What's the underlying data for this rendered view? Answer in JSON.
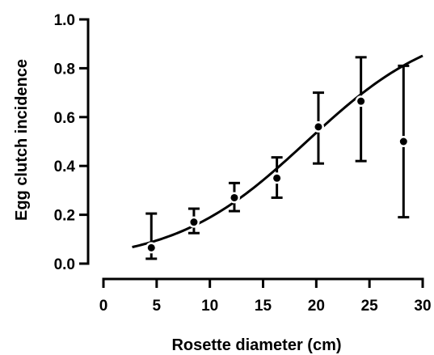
{
  "chart_data": {
    "type": "scatter",
    "title": "",
    "xlabel": "Rosette diameter (cm)",
    "ylabel": "Egg clutch incidence",
    "xlim": [
      0,
      30
    ],
    "ylim": [
      0,
      1
    ],
    "xticks": [
      0,
      5,
      10,
      15,
      20,
      25,
      30
    ],
    "yticks": [
      0.0,
      0.2,
      0.4,
      0.6,
      0.8,
      1.0
    ],
    "xtick_labels": [
      "0",
      "5",
      "10",
      "15",
      "20",
      "25",
      "30"
    ],
    "ytick_labels": [
      "0.0",
      "0.2",
      "0.4",
      "0.6",
      "0.8",
      "1.0"
    ],
    "grid": false,
    "points": [
      {
        "x": 4.5,
        "y": 0.065,
        "err_low": 0.02,
        "err_high": 0.205
      },
      {
        "x": 8.5,
        "y": 0.17,
        "err_low": 0.125,
        "err_high": 0.225
      },
      {
        "x": 12.3,
        "y": 0.27,
        "err_low": 0.215,
        "err_high": 0.33
      },
      {
        "x": 16.3,
        "y": 0.35,
        "err_low": 0.27,
        "err_high": 0.435
      },
      {
        "x": 20.2,
        "y": 0.56,
        "err_low": 0.41,
        "err_high": 0.7
      },
      {
        "x": 24.2,
        "y": 0.665,
        "err_low": 0.42,
        "err_high": 0.845
      },
      {
        "x": 28.2,
        "y": 0.5,
        "err_low": 0.19,
        "err_high": 0.81
      }
    ],
    "fit_curve": {
      "type": "logistic",
      "x_range": [
        2.7,
        30
      ],
      "midpoint": 19.1,
      "slope": 0.16
    }
  }
}
